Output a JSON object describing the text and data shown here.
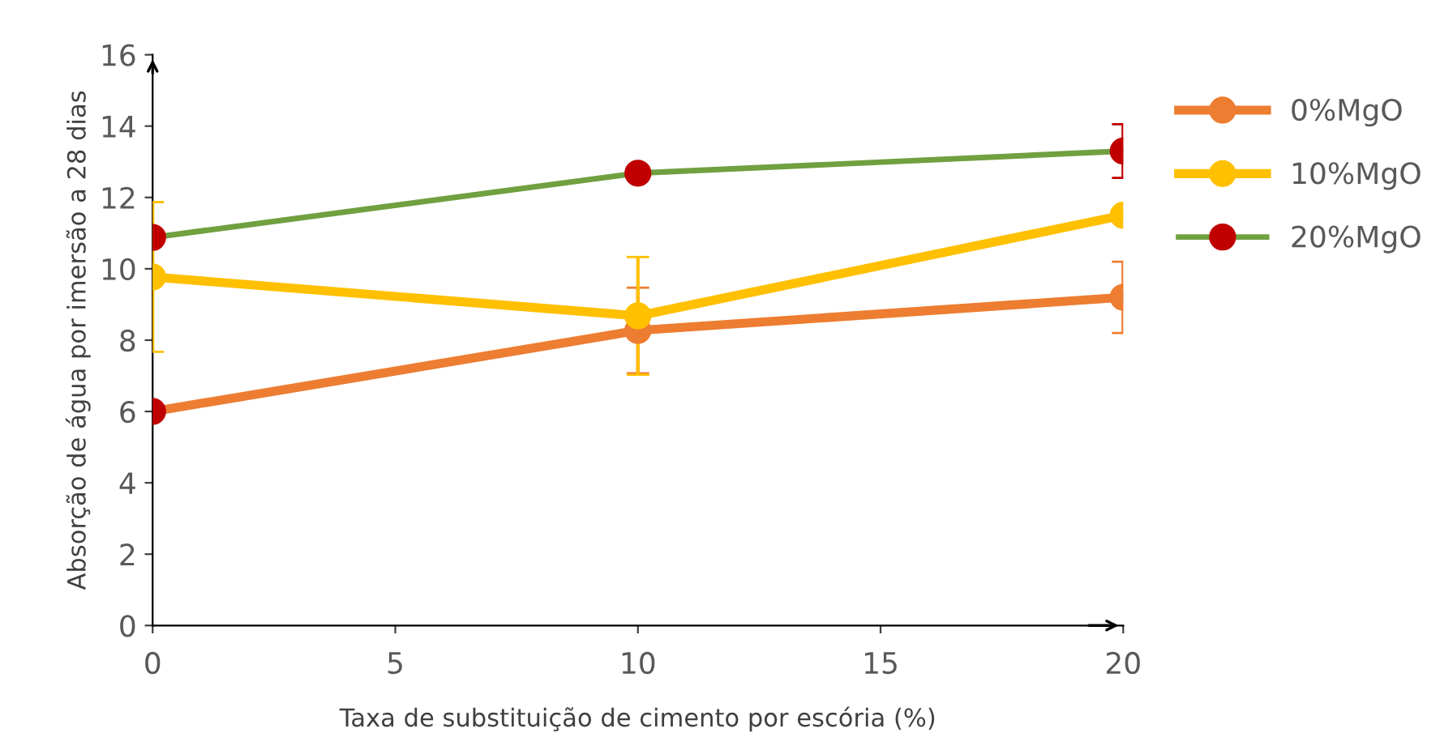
{
  "chart_data": {
    "type": "line",
    "xlabel": "Taxa de substituição de cimento por escória (%)",
    "ylabel": "Absorção de água por imersão a 28 dias",
    "x": [
      0,
      10,
      20
    ],
    "xlim": [
      0,
      20
    ],
    "xticks": [
      0,
      5,
      10,
      15,
      20
    ],
    "ylim": [
      0,
      16
    ],
    "yticks": [
      0,
      2,
      4,
      6,
      8,
      10,
      12,
      14,
      16
    ],
    "grid": false,
    "legend": "right",
    "marker": "circle",
    "line_style": "solid",
    "series": [
      {
        "name": "0%MgO",
        "color": "#ed7d31",
        "colors": [
          "#c00000",
          "#ed7d31",
          "#ed7d31"
        ],
        "values": [
          6.0,
          8.27,
          9.2
        ],
        "errors": [
          null,
          1.2,
          1.0
        ]
      },
      {
        "name": "10%MgO",
        "color": "#ffc000",
        "colors": [
          "#ffc000",
          "#ffc000",
          "#ffc000"
        ],
        "values": [
          9.77,
          8.68,
          11.5
        ],
        "errors": [
          2.1,
          1.65,
          null
        ]
      },
      {
        "name": "20%MgO",
        "color": "#70a040",
        "colors": [
          "#c00000",
          "#c00000",
          "#c00000"
        ],
        "values": [
          10.88,
          12.68,
          13.3
        ],
        "errors": [
          null,
          null,
          0.75
        ]
      }
    ]
  }
}
